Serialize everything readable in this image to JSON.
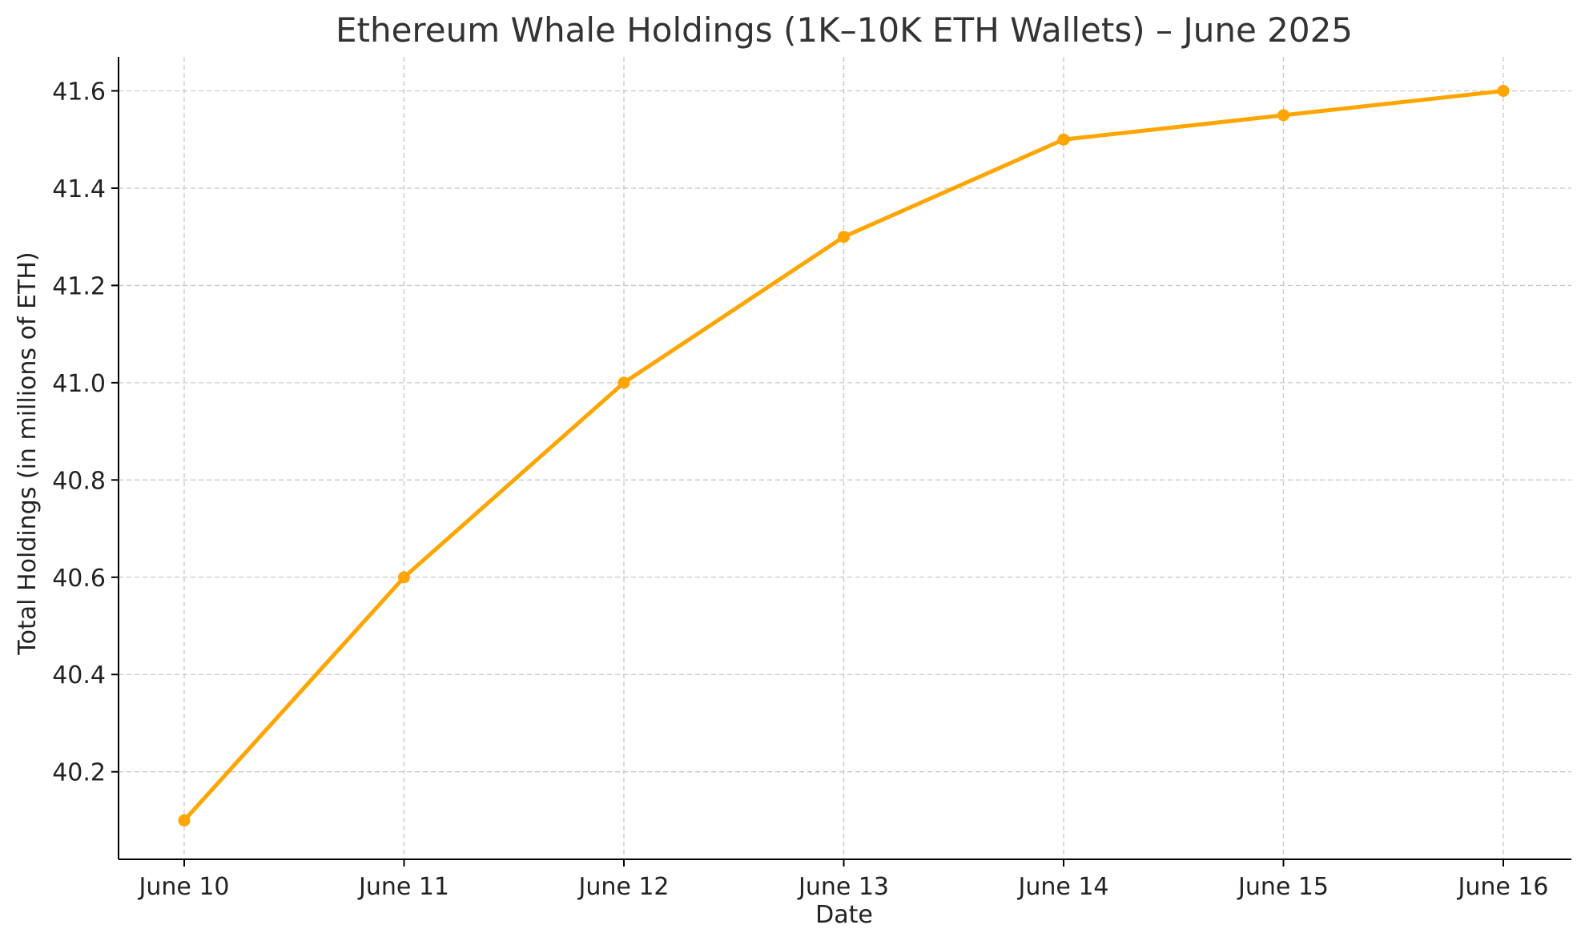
{
  "chart_data": {
    "type": "line",
    "title": "Ethereum Whale Holdings (1K–10K ETH Wallets) – June 2025",
    "xlabel": "Date",
    "ylabel": "Total Holdings (in millions of ETH)",
    "categories": [
      "June 10",
      "June 11",
      "June 12",
      "June 13",
      "June 14",
      "June 15",
      "June 16"
    ],
    "series": [
      {
        "values": [
          40.1,
          40.6,
          41.0,
          41.3,
          41.5,
          41.55,
          41.6
        ],
        "color": "#FFA500",
        "marker": "circle"
      }
    ],
    "ylim": [
      40.02,
      41.67
    ],
    "yticks": [
      40.2,
      40.4,
      40.6,
      40.8,
      41.0,
      41.2,
      41.4,
      41.6
    ],
    "ytick_labels": [
      "40.2",
      "40.4",
      "40.6",
      "40.8",
      "41.0",
      "41.2",
      "41.4",
      "41.6"
    ],
    "grid": true,
    "legend": "none"
  }
}
